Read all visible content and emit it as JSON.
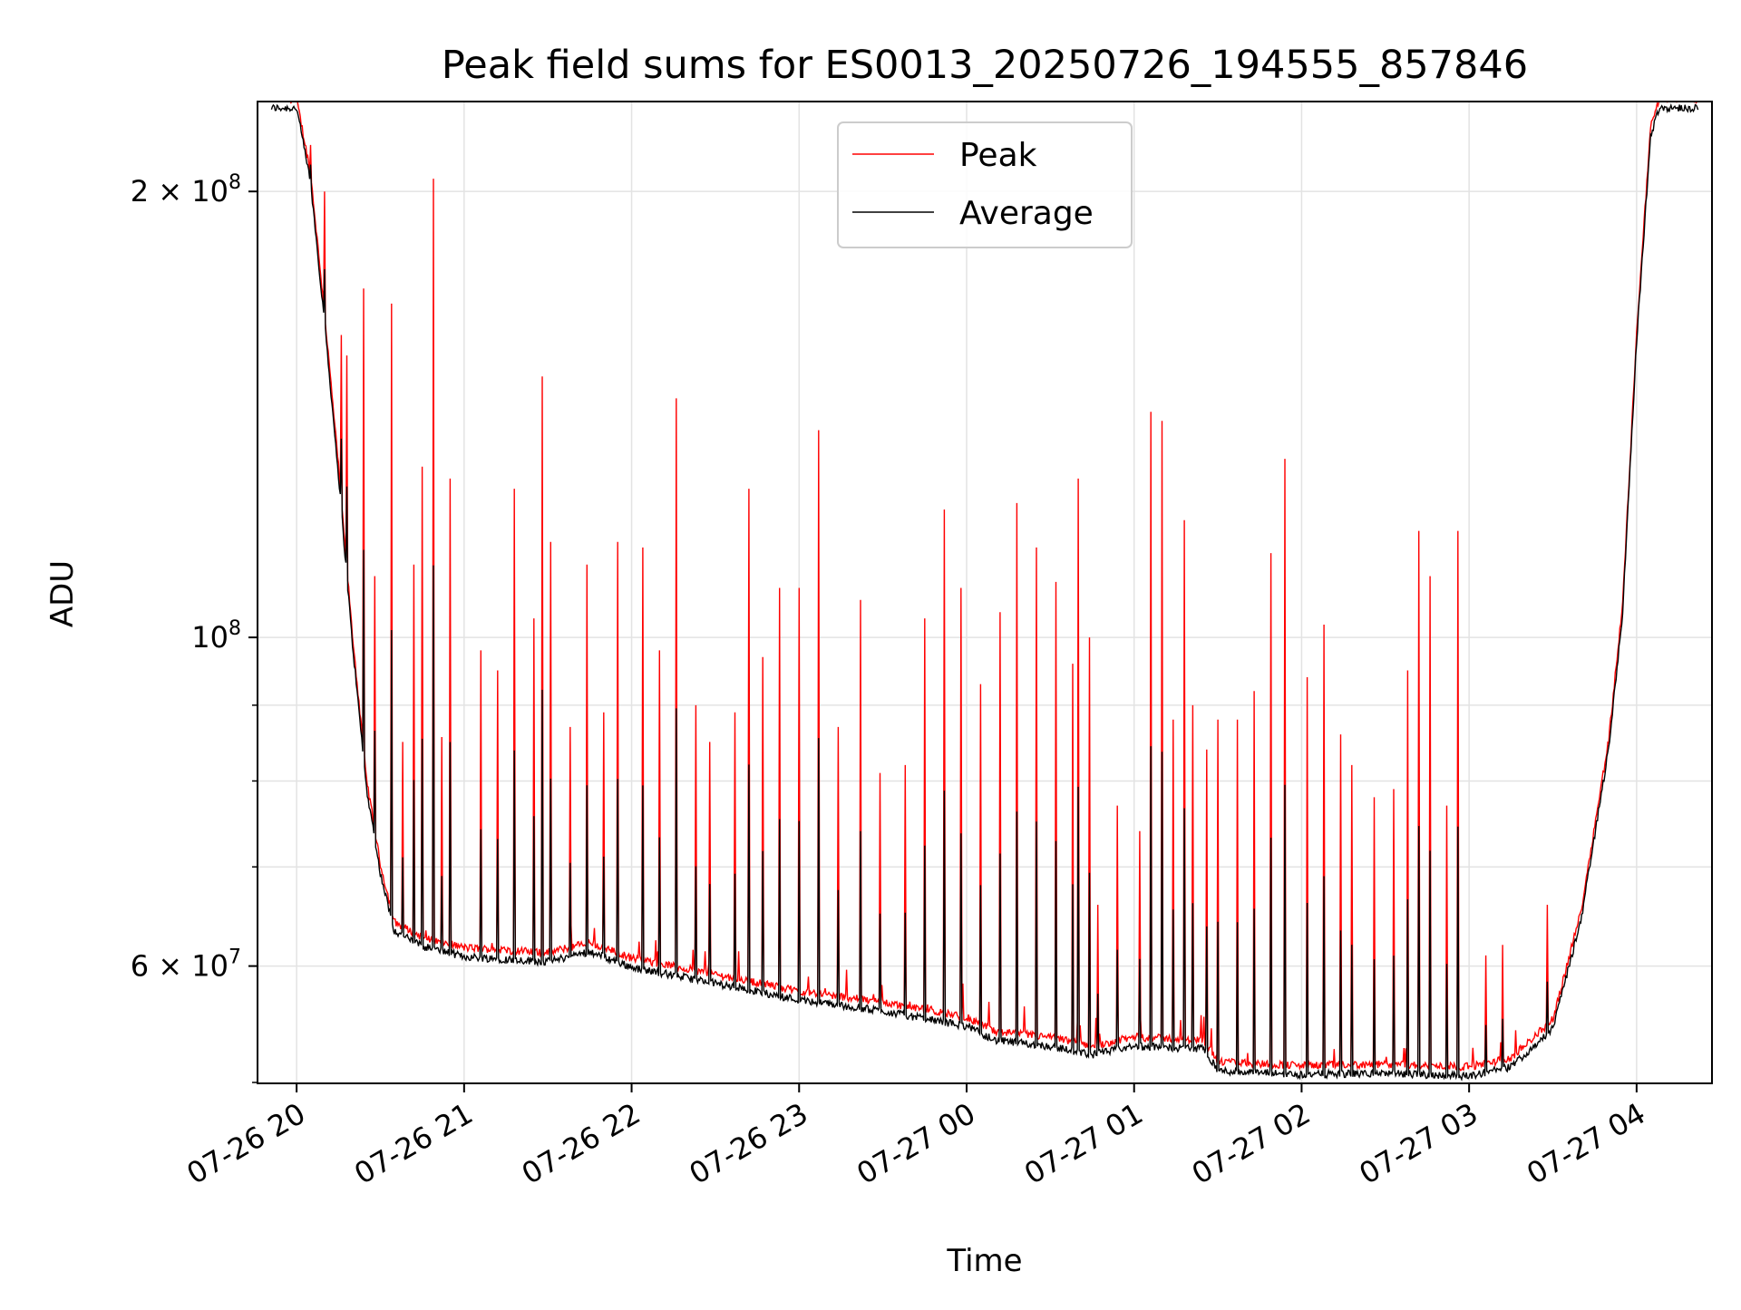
{
  "chart_data": {
    "type": "line",
    "title": "Peak field sums for ES0013_20250726_194555_857846",
    "xlabel": "Time",
    "ylabel": "ADU",
    "y_scale": "log",
    "ylim": [
      50000000,
      230000000
    ],
    "xlim": [
      "2025-07-26 19:46",
      "2025-07-27 04:27"
    ],
    "grid": true,
    "legend_position": "top-center",
    "x_ticks": [
      {
        "t": "2025-07-26 20:00",
        "label": "07-26 20"
      },
      {
        "t": "2025-07-26 21:00",
        "label": "07-26 21"
      },
      {
        "t": "2025-07-26 22:00",
        "label": "07-26 22"
      },
      {
        "t": "2025-07-26 23:00",
        "label": "07-26 23"
      },
      {
        "t": "2025-07-27 00:00",
        "label": "07-27 00"
      },
      {
        "t": "2025-07-27 01:00",
        "label": "07-27 01"
      },
      {
        "t": "2025-07-27 02:00",
        "label": "07-27 02"
      },
      {
        "t": "2025-07-27 03:00",
        "label": "07-27 03"
      },
      {
        "t": "2025-07-27 04:00",
        "label": "07-27 04"
      }
    ],
    "y_major_ticks": [
      {
        "value": 200000000,
        "base": "2 × 10",
        "exp": "8"
      },
      {
        "value": 100000000,
        "base": "10",
        "exp": "8"
      },
      {
        "value": 60000000,
        "base": "6 × 10",
        "exp": "7"
      }
    ],
    "y_minor_gridlines": [
      70000000,
      80000000,
      90000000
    ],
    "series": [
      {
        "name": "Peak",
        "color": "#ff0000",
        "baseline": [
          [
            "2025-07-26 19:46",
            230000000
          ],
          [
            "2025-07-26 20:00",
            230000000
          ],
          [
            "2025-07-26 20:05",
            205000000
          ],
          [
            "2025-07-26 20:10",
            165000000
          ],
          [
            "2025-07-26 20:15",
            130000000
          ],
          [
            "2025-07-26 20:20",
            100000000
          ],
          [
            "2025-07-26 20:25",
            80000000
          ],
          [
            "2025-07-26 20:30",
            70000000
          ],
          [
            "2025-07-26 20:35",
            64000000
          ],
          [
            "2025-07-26 20:45",
            62500000
          ],
          [
            "2025-07-26 21:00",
            61500000
          ],
          [
            "2025-07-26 21:30",
            61000000
          ],
          [
            "2025-07-26 21:45",
            62000000
          ],
          [
            "2025-07-26 22:00",
            60500000
          ],
          [
            "2025-07-26 22:30",
            59000000
          ],
          [
            "2025-07-26 23:00",
            57500000
          ],
          [
            "2025-07-26 23:30",
            56500000
          ],
          [
            "2025-07-27 00:00",
            55200000
          ],
          [
            "2025-07-27 00:10",
            54000000
          ],
          [
            "2025-07-27 00:30",
            53500000
          ],
          [
            "2025-07-27 00:45",
            52800000
          ],
          [
            "2025-07-27 01:00",
            53500000
          ],
          [
            "2025-07-27 01:25",
            53300000
          ],
          [
            "2025-07-27 01:30",
            51500000
          ],
          [
            "2025-07-27 02:00",
            51200000
          ],
          [
            "2025-07-27 02:30",
            51300000
          ],
          [
            "2025-07-27 03:00",
            51100000
          ],
          [
            "2025-07-27 03:15",
            51800000
          ],
          [
            "2025-07-27 03:30",
            55000000
          ],
          [
            "2025-07-27 03:40",
            65000000
          ],
          [
            "2025-07-27 03:50",
            85000000
          ],
          [
            "2025-07-27 03:55",
            105000000
          ],
          [
            "2025-07-27 04:00",
            160000000
          ],
          [
            "2025-07-27 04:05",
            220000000
          ],
          [
            "2025-07-27 04:08",
            230000000
          ],
          [
            "2025-07-27 04:27",
            230000000
          ]
        ],
        "spikes": [
          [
            "2025-07-26 20:05",
            215000000
          ],
          [
            "2025-07-26 20:10",
            200000000
          ],
          [
            "2025-07-26 20:16",
            160000000
          ],
          [
            "2025-07-26 20:18",
            155000000
          ],
          [
            "2025-07-26 20:24",
            172000000
          ],
          [
            "2025-07-26 20:28",
            110000000
          ],
          [
            "2025-07-26 20:34",
            168000000
          ],
          [
            "2025-07-26 20:38",
            85000000
          ],
          [
            "2025-07-26 20:42",
            112000000
          ],
          [
            "2025-07-26 20:45",
            128000000
          ],
          [
            "2025-07-26 20:49",
            204000000
          ],
          [
            "2025-07-26 20:52",
            82000000
          ],
          [
            "2025-07-26 20:55",
            128000000
          ],
          [
            "2025-07-26 21:06",
            98000000
          ],
          [
            "2025-07-26 21:12",
            95000000
          ],
          [
            "2025-07-26 21:18",
            126000000
          ],
          [
            "2025-07-26 21:25",
            103000000
          ],
          [
            "2025-07-26 21:28",
            150000000
          ],
          [
            "2025-07-26 21:31",
            116000000
          ],
          [
            "2025-07-26 21:38",
            87000000
          ],
          [
            "2025-07-26 21:44",
            112000000
          ],
          [
            "2025-07-26 21:50",
            89000000
          ],
          [
            "2025-07-26 21:55",
            116000000
          ],
          [
            "2025-07-26 22:04",
            115000000
          ],
          [
            "2025-07-26 22:10",
            98000000
          ],
          [
            "2025-07-26 22:16",
            145000000
          ],
          [
            "2025-07-26 22:23",
            90000000
          ],
          [
            "2025-07-26 22:28",
            85000000
          ],
          [
            "2025-07-26 22:37",
            89000000
          ],
          [
            "2025-07-26 22:42",
            126000000
          ],
          [
            "2025-07-26 22:47",
            97000000
          ],
          [
            "2025-07-26 22:53",
            108000000
          ],
          [
            "2025-07-26 23:00",
            108000000
          ],
          [
            "2025-07-26 23:07",
            138000000
          ],
          [
            "2025-07-26 23:14",
            87000000
          ],
          [
            "2025-07-26 23:22",
            106000000
          ],
          [
            "2025-07-26 23:29",
            81000000
          ],
          [
            "2025-07-26 23:38",
            82000000
          ],
          [
            "2025-07-26 23:45",
            103000000
          ],
          [
            "2025-07-26 23:52",
            122000000
          ],
          [
            "2025-07-26 23:58",
            108000000
          ],
          [
            "2025-07-27 00:05",
            93000000
          ],
          [
            "2025-07-27 00:12",
            104000000
          ],
          [
            "2025-07-27 00:18",
            118000000
          ],
          [
            "2025-07-27 00:25",
            115000000
          ],
          [
            "2025-07-27 00:32",
            109000000
          ],
          [
            "2025-07-27 00:38",
            96000000
          ],
          [
            "2025-07-27 00:40",
            128000000
          ],
          [
            "2025-07-27 00:44",
            100000000
          ],
          [
            "2025-07-27 00:47",
            66000000
          ],
          [
            "2025-07-27 00:54",
            77000000
          ],
          [
            "2025-07-27 01:02",
            74000000
          ],
          [
            "2025-07-27 01:06",
            142000000
          ],
          [
            "2025-07-27 01:10",
            140000000
          ],
          [
            "2025-07-27 01:14",
            88000000
          ],
          [
            "2025-07-27 01:18",
            120000000
          ],
          [
            "2025-07-27 01:21",
            90000000
          ],
          [
            "2025-07-27 01:26",
            84000000
          ],
          [
            "2025-07-27 01:30",
            88000000
          ],
          [
            "2025-07-27 01:37",
            88000000
          ],
          [
            "2025-07-27 01:43",
            92000000
          ],
          [
            "2025-07-27 01:49",
            114000000
          ],
          [
            "2025-07-27 01:54",
            132000000
          ],
          [
            "2025-07-27 02:02",
            94000000
          ],
          [
            "2025-07-27 02:08",
            102000000
          ],
          [
            "2025-07-27 02:14",
            86000000
          ],
          [
            "2025-07-27 02:18",
            82000000
          ],
          [
            "2025-07-27 02:26",
            78000000
          ],
          [
            "2025-07-27 02:33",
            79000000
          ],
          [
            "2025-07-27 02:38",
            95000000
          ],
          [
            "2025-07-27 02:42",
            118000000
          ],
          [
            "2025-07-27 02:46",
            110000000
          ],
          [
            "2025-07-27 02:52",
            77000000
          ],
          [
            "2025-07-27 02:56",
            118000000
          ],
          [
            "2025-07-27 03:06",
            61000000
          ],
          [
            "2025-07-27 03:12",
            62000000
          ],
          [
            "2025-07-27 03:28",
            66000000
          ]
        ]
      },
      {
        "name": "Average",
        "color": "#000000"
      }
    ]
  }
}
